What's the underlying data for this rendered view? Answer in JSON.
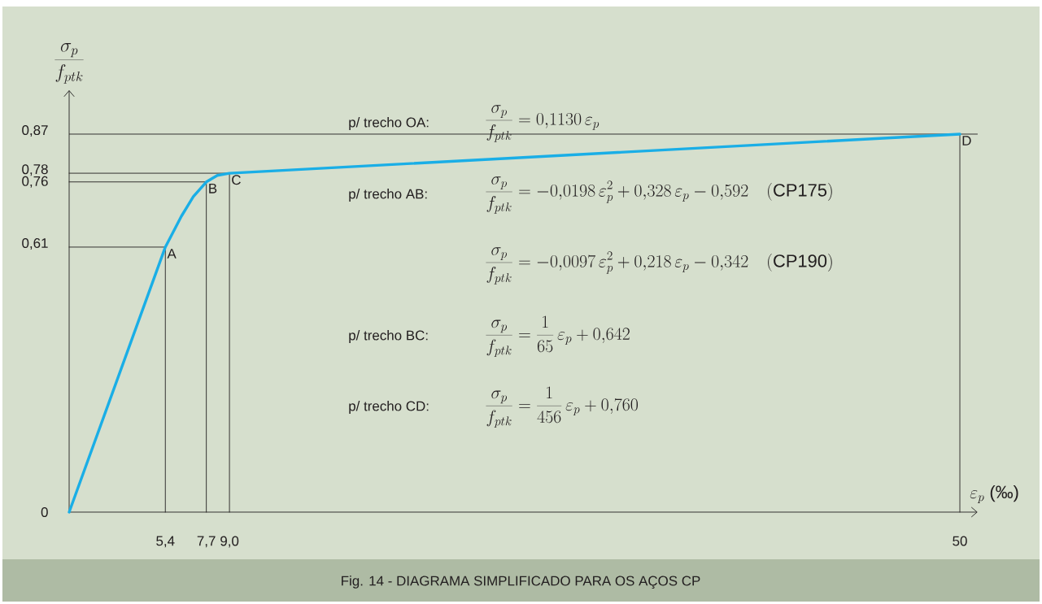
{
  "chart_data": {
    "type": "line",
    "title": "Fig. 14 - DIAGRAMA SIMPLIFICADO PARA OS AÇOS CP",
    "xlabel": "\\varepsilon_p\\;\\mbox{(‰)}",
    "ylabel": "\\frac{\\sigma_p}{f_{ptk}}",
    "xlim": [
      0,
      51
    ],
    "ylim": [
      0,
      0.97
    ],
    "xticks": [
      {
        "value": 5.4,
        "label": "5,4"
      },
      {
        "value": 7.7,
        "label": "7,7"
      },
      {
        "value": 9.0,
        "label": "9,0"
      },
      50
    ],
    "yticks": [
      0,
      {
        "value": 0.61,
        "label": "0,61"
      },
      {
        "value": 0.76,
        "label": "0,76"
      },
      {
        "value": 0.78,
        "label": "0,78"
      },
      {
        "value": 0.87,
        "label": "0,87"
      }
    ],
    "grid": false,
    "marker": "none",
    "line_style": "solid",
    "series": [
      {
        "color": "#1aaee6",
        "x": [
          0,
          5.4,
          6.3,
          6.97,
          7.7,
          8.32,
          9.0,
          50
        ],
        "values": [
          0,
          0.61,
          0.681,
          0.726,
          0.76,
          0.775,
          0.78,
          0.87
        ]
      },
      {
        "color": "#231f20",
        "x": [
          0,
          5.4
        ],
        "values": [
          0.61,
          0.61
        ]
      },
      {
        "color": "#231f20",
        "x": [
          5.4,
          5.4
        ],
        "values": [
          0.61,
          0
        ]
      },
      {
        "color": "#231f20",
        "x": [
          0,
          7.7
        ],
        "values": [
          0.76,
          0.76
        ]
      },
      {
        "color": "#231f20",
        "x": [
          7.7,
          7.7
        ],
        "values": [
          0.76,
          0
        ]
      },
      {
        "color": "#231f20",
        "x": [
          0,
          9.0
        ],
        "values": [
          0.78,
          0.78
        ]
      },
      {
        "color": "#231f20",
        "x": [
          9.0,
          9.0
        ],
        "values": [
          0.78,
          0
        ]
      },
      {
        "color": "#231f20",
        "x": [
          50,
          50
        ],
        "values": [
          0.87,
          0
        ]
      }
    ],
    "ref_lines": [
      {
        "axis": "y",
        "value": 0.87,
        "color": "#231f20"
      }
    ],
    "annotations": [
      "p/ trecho OA:",
      "p/ trecho AB:",
      "p/ trecho BC:",
      "p/ trecho CD:",
      "\\frac{\\sigma_p}{f_{ptk}} = 0{,}1130\\,\\varepsilon_p",
      "\\frac{\\sigma_p}{f_{ptk}} = -0{,}0198\\,\\varepsilon_p^2 + 0{,}328\\,\\varepsilon_p - 0{,}592\\quad\\mathrm{(CP175)}",
      "\\frac{\\sigma_p}{f_{ptk}} = -0{,}0097\\,\\varepsilon_p^2 + 0{,}218\\,\\varepsilon_p - 0{,}342\\quad\\mathrm{(CP190)}",
      "\\frac{\\sigma_p}{f_{ptk}} = \\frac{1}{65}\\,\\varepsilon_p + 0{,}642",
      "\\frac{\\sigma_p}{f_{ptk}} = \\frac{1}{456}\\,\\varepsilon_p + 0{,}760",
      {
        "text": "A",
        "x": 5.4,
        "y": 0.61
      },
      {
        "text": "B",
        "x": 7.7,
        "y": 0.76
      },
      {
        "text": "C",
        "x": 9.0,
        "y": 0.78
      },
      {
        "text": "D",
        "x": 50,
        "y": 0.87
      }
    ]
  }
}
